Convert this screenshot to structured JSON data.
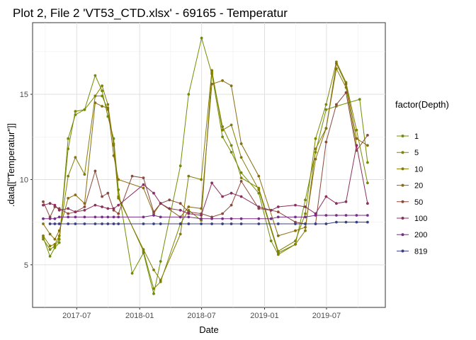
{
  "chart_data": {
    "type": "line",
    "title": "Plot 2, File 2 'VT53_CTD.xlsx' - 69165  -  Temperatur",
    "xlabel": "Date",
    "ylabel": ".data[[\"Temperatur\"]]",
    "x_ticks": [
      "2017-07",
      "2018-01",
      "2018-07",
      "2019-01",
      "2019-07"
    ],
    "y_ticks": [
      "5",
      "10",
      "15"
    ],
    "xlim": [
      "2017-02-22",
      "2019-12-20"
    ],
    "ylim": [
      2.5,
      19.2
    ],
    "grid": true,
    "legend": {
      "title": "factor(Depth)",
      "position": "right"
    },
    "series": [
      {
        "name": "1",
        "color": "#6f8f00",
        "points": [
          [
            "2017-03-25",
            6.6
          ],
          [
            "2017-04-14",
            5.5
          ],
          [
            "2017-04-28",
            6.0
          ],
          [
            "2017-05-11",
            6.3
          ],
          [
            "2017-06-06",
            12.4
          ],
          [
            "2017-06-27",
            13.8
          ],
          [
            "2017-07-24",
            14.1
          ],
          [
            "2017-08-24",
            16.1
          ],
          [
            "2017-09-13",
            15.2
          ],
          [
            "2017-09-30",
            13.7
          ],
          [
            "2017-10-17",
            12.4
          ],
          [
            "2017-10-31",
            9.4
          ],
          [
            "2017-12-10",
            4.5
          ],
          [
            "2018-01-12",
            5.7
          ],
          [
            "2018-02-11",
            3.3
          ],
          [
            "2018-03-03",
            5.2
          ],
          [
            "2018-04-30",
            10.8
          ],
          [
            "2018-05-24",
            15.0
          ],
          [
            "2018-07-01",
            18.3
          ],
          [
            "2018-07-31",
            16.2
          ],
          [
            "2018-08-31",
            12.5
          ],
          [
            "2018-09-26",
            11.6
          ],
          [
            "2018-10-25",
            10.4
          ],
          [
            "2018-12-15",
            9.2
          ],
          [
            "2019-01-20",
            6.4
          ],
          [
            "2019-02-10",
            5.6
          ],
          [
            "2019-04-01",
            6.2
          ],
          [
            "2019-04-30",
            8.8
          ],
          [
            "2019-05-30",
            11.6
          ],
          [
            "2019-06-30",
            14.1
          ],
          [
            "2019-07-30",
            14.3
          ],
          [
            "2019-10-06",
            14.7
          ],
          [
            "2019-10-29",
            11.0
          ]
        ]
      },
      {
        "name": "5",
        "color": "#7b8700",
        "points": [
          [
            "2017-03-25",
            6.5
          ],
          [
            "2017-04-14",
            5.9
          ],
          [
            "2017-04-28",
            6.1
          ],
          [
            "2017-05-11",
            6.5
          ],
          [
            "2017-06-06",
            11.8
          ],
          [
            "2017-06-27",
            14.0
          ],
          [
            "2017-07-24",
            14.1
          ],
          [
            "2017-08-24",
            14.9
          ],
          [
            "2017-09-13",
            14.9
          ],
          [
            "2017-09-30",
            14.1
          ],
          [
            "2017-10-17",
            12.1
          ],
          [
            "2017-10-31",
            9.0
          ],
          [
            "2018-01-12",
            5.8
          ],
          [
            "2018-02-11",
            3.6
          ],
          [
            "2018-03-03",
            4.0
          ],
          [
            "2018-04-30",
            7.4
          ],
          [
            "2018-05-24",
            8.2
          ],
          [
            "2018-06-30",
            7.6
          ],
          [
            "2018-07-31",
            16.3
          ],
          [
            "2018-08-31",
            13.1
          ],
          [
            "2018-09-26",
            12.0
          ],
          [
            "2018-10-25",
            10.1
          ],
          [
            "2018-12-15",
            9.5
          ],
          [
            "2019-02-10",
            5.8
          ],
          [
            "2019-04-01",
            6.4
          ],
          [
            "2019-04-30",
            8.0
          ],
          [
            "2019-05-30",
            12.4
          ],
          [
            "2019-06-30",
            14.4
          ],
          [
            "2019-07-30",
            16.9
          ],
          [
            "2019-08-27",
            15.7
          ],
          [
            "2019-09-27",
            12.9
          ],
          [
            "2019-10-29",
            9.8
          ]
        ]
      },
      {
        "name": "10",
        "color": "#857d00",
        "points": [
          [
            "2017-03-25",
            6.7
          ],
          [
            "2017-04-14",
            6.1
          ],
          [
            "2017-04-28",
            6.2
          ],
          [
            "2017-05-11",
            6.7
          ],
          [
            "2017-06-06",
            10.2
          ],
          [
            "2017-06-27",
            11.3
          ],
          [
            "2017-07-24",
            10.3
          ],
          [
            "2017-08-24",
            14.9
          ],
          [
            "2017-09-13",
            15.5
          ],
          [
            "2017-09-30",
            14.4
          ],
          [
            "2017-10-17",
            12.0
          ],
          [
            "2017-10-31",
            8.9
          ],
          [
            "2018-01-12",
            5.9
          ],
          [
            "2018-02-11",
            4.7
          ],
          [
            "2018-03-03",
            4.1
          ],
          [
            "2018-04-30",
            6.8
          ],
          [
            "2018-05-24",
            10.2
          ],
          [
            "2018-06-30",
            10.0
          ],
          [
            "2018-07-31",
            16.4
          ],
          [
            "2018-08-31",
            12.9
          ],
          [
            "2018-09-26",
            13.2
          ],
          [
            "2018-10-25",
            11.3
          ],
          [
            "2018-12-15",
            9.4
          ],
          [
            "2019-02-10",
            5.7
          ],
          [
            "2019-04-01",
            6.2
          ],
          [
            "2019-04-30",
            7.0
          ],
          [
            "2019-05-30",
            11.8
          ],
          [
            "2019-06-30",
            13.0
          ],
          [
            "2019-07-30",
            16.5
          ],
          [
            "2019-08-27",
            15.4
          ],
          [
            "2019-09-27",
            12.0
          ]
        ]
      },
      {
        "name": "20",
        "color": "#8a6d0d",
        "points": [
          [
            "2017-03-25",
            7.4
          ],
          [
            "2017-04-14",
            6.8
          ],
          [
            "2017-04-28",
            6.5
          ],
          [
            "2017-05-11",
            7.0
          ],
          [
            "2017-06-06",
            8.9
          ],
          [
            "2017-06-27",
            9.1
          ],
          [
            "2017-07-24",
            8.6
          ],
          [
            "2017-08-24",
            14.5
          ],
          [
            "2017-09-13",
            14.3
          ],
          [
            "2017-09-30",
            14.2
          ],
          [
            "2017-10-17",
            11.4
          ],
          [
            "2017-10-31",
            10.0
          ],
          [
            "2018-01-12",
            9.5
          ],
          [
            "2018-02-11",
            8.0
          ],
          [
            "2018-03-03",
            8.6
          ],
          [
            "2018-04-30",
            7.8
          ],
          [
            "2018-05-24",
            8.4
          ],
          [
            "2018-06-30",
            8.3
          ],
          [
            "2018-07-31",
            15.6
          ],
          [
            "2018-08-31",
            15.8
          ],
          [
            "2018-09-26",
            15.5
          ],
          [
            "2018-10-25",
            12.1
          ],
          [
            "2018-12-15",
            10.2
          ],
          [
            "2019-02-10",
            6.7
          ],
          [
            "2019-04-01",
            7.0
          ],
          [
            "2019-04-30",
            7.2
          ],
          [
            "2019-05-30",
            11.2
          ],
          [
            "2019-06-30",
            13.0
          ],
          [
            "2019-07-30",
            16.8
          ],
          [
            "2019-08-27",
            15.6
          ],
          [
            "2019-09-27",
            12.4
          ],
          [
            "2019-10-29",
            12.0
          ]
        ]
      },
      {
        "name": "50",
        "color": "#8b4a39",
        "points": [
          [
            "2017-03-25",
            8.7
          ],
          [
            "2017-04-14",
            7.8
          ],
          [
            "2017-04-28",
            8.4
          ],
          [
            "2017-05-11",
            8.3
          ],
          [
            "2017-06-06",
            8.0
          ],
          [
            "2017-06-27",
            8.1
          ],
          [
            "2017-07-24",
            8.4
          ],
          [
            "2017-08-24",
            10.5
          ],
          [
            "2017-09-13",
            9.0
          ],
          [
            "2017-09-30",
            9.2
          ],
          [
            "2017-10-17",
            8.2
          ],
          [
            "2017-10-31",
            8.0
          ],
          [
            "2017-12-10",
            10.2
          ],
          [
            "2018-01-12",
            10.1
          ],
          [
            "2018-02-11",
            8.1
          ],
          [
            "2018-03-03",
            8.6
          ],
          [
            "2018-03-29",
            8.8
          ],
          [
            "2018-04-30",
            8.6
          ],
          [
            "2018-05-24",
            8.1
          ],
          [
            "2018-06-30",
            8.0
          ],
          [
            "2018-07-31",
            7.8
          ],
          [
            "2018-08-31",
            8.0
          ],
          [
            "2018-09-26",
            8.5
          ],
          [
            "2018-10-25",
            9.9
          ],
          [
            "2018-12-15",
            8.3
          ],
          [
            "2019-01-20",
            8.2
          ],
          [
            "2019-02-10",
            8.1
          ],
          [
            "2019-04-01",
            7.5
          ],
          [
            "2019-04-30",
            7.4
          ],
          [
            "2019-05-30",
            7.4
          ],
          [
            "2019-06-30",
            12.2
          ],
          [
            "2019-07-30",
            14.4
          ],
          [
            "2019-08-27",
            15.1
          ],
          [
            "2019-09-27",
            11.7
          ],
          [
            "2019-10-29",
            12.6
          ]
        ]
      },
      {
        "name": "100",
        "color": "#8b2f5e",
        "points": [
          [
            "2017-03-25",
            8.5
          ],
          [
            "2017-04-14",
            8.6
          ],
          [
            "2017-04-28",
            8.5
          ],
          [
            "2017-05-11",
            8.2
          ],
          [
            "2017-06-06",
            8.3
          ],
          [
            "2017-06-27",
            8.1
          ],
          [
            "2017-07-24",
            8.2
          ],
          [
            "2017-08-24",
            8.5
          ],
          [
            "2017-09-13",
            8.4
          ],
          [
            "2017-09-30",
            8.3
          ],
          [
            "2017-10-17",
            8.3
          ],
          [
            "2017-10-31",
            8.5
          ],
          [
            "2018-01-12",
            9.7
          ],
          [
            "2018-02-11",
            9.2
          ],
          [
            "2018-03-03",
            8.6
          ],
          [
            "2018-03-29",
            8.3
          ],
          [
            "2018-04-30",
            8.2
          ],
          [
            "2018-05-24",
            8.0
          ],
          [
            "2018-06-30",
            7.9
          ],
          [
            "2018-07-31",
            9.8
          ],
          [
            "2018-08-31",
            9.0
          ],
          [
            "2018-09-26",
            9.2
          ],
          [
            "2018-10-25",
            9.0
          ],
          [
            "2018-12-15",
            8.4
          ],
          [
            "2019-01-20",
            8.2
          ],
          [
            "2019-02-10",
            8.4
          ],
          [
            "2019-04-01",
            8.5
          ],
          [
            "2019-04-30",
            8.4
          ],
          [
            "2019-05-30",
            8.0
          ],
          [
            "2019-06-30",
            9.0
          ],
          [
            "2019-07-30",
            8.6
          ],
          [
            "2019-08-27",
            8.7
          ],
          [
            "2019-09-27",
            12.0
          ],
          [
            "2019-10-29",
            8.6
          ]
        ]
      },
      {
        "name": "200",
        "color": "#7a2d8a",
        "points": [
          [
            "2017-03-25",
            7.7
          ],
          [
            "2017-04-14",
            7.7
          ],
          [
            "2017-04-28",
            7.7
          ],
          [
            "2017-05-11",
            7.8
          ],
          [
            "2017-06-06",
            7.8
          ],
          [
            "2017-06-27",
            7.8
          ],
          [
            "2017-07-24",
            7.8
          ],
          [
            "2017-08-24",
            7.8
          ],
          [
            "2017-09-13",
            7.8
          ],
          [
            "2017-09-30",
            7.8
          ],
          [
            "2017-10-17",
            7.8
          ],
          [
            "2017-10-31",
            7.8
          ],
          [
            "2018-01-12",
            7.8
          ],
          [
            "2018-02-11",
            7.9
          ],
          [
            "2018-03-03",
            7.8
          ],
          [
            "2018-04-30",
            7.8
          ],
          [
            "2018-05-24",
            7.8
          ],
          [
            "2018-06-30",
            7.7
          ],
          [
            "2018-07-31",
            7.7
          ],
          [
            "2018-08-31",
            7.7
          ],
          [
            "2018-09-26",
            7.7
          ],
          [
            "2018-10-25",
            7.7
          ],
          [
            "2018-12-15",
            7.7
          ],
          [
            "2019-01-20",
            7.7
          ],
          [
            "2019-02-10",
            7.8
          ],
          [
            "2019-04-01",
            7.8
          ],
          [
            "2019-04-30",
            7.8
          ],
          [
            "2019-05-30",
            7.9
          ],
          [
            "2019-06-30",
            7.9
          ],
          [
            "2019-07-30",
            7.9
          ],
          [
            "2019-08-27",
            7.9
          ],
          [
            "2019-09-27",
            7.9
          ],
          [
            "2019-10-29",
            7.9
          ]
        ]
      },
      {
        "name": "819",
        "color": "#3a3f85",
        "points": [
          [
            "2017-04-14",
            7.4
          ],
          [
            "2017-04-28",
            7.4
          ],
          [
            "2017-05-11",
            7.4
          ],
          [
            "2017-06-06",
            7.4
          ],
          [
            "2017-06-27",
            7.4
          ],
          [
            "2017-07-24",
            7.4
          ],
          [
            "2017-08-24",
            7.4
          ],
          [
            "2017-09-13",
            7.4
          ],
          [
            "2017-09-30",
            7.4
          ],
          [
            "2017-10-17",
            7.4
          ],
          [
            "2017-10-31",
            7.4
          ],
          [
            "2018-01-12",
            7.4
          ],
          [
            "2018-02-11",
            7.4
          ],
          [
            "2018-03-03",
            7.4
          ],
          [
            "2018-04-30",
            7.4
          ],
          [
            "2018-05-24",
            7.4
          ],
          [
            "2018-06-30",
            7.4
          ],
          [
            "2018-07-31",
            7.4
          ],
          [
            "2018-08-31",
            7.4
          ],
          [
            "2018-09-26",
            7.4
          ],
          [
            "2018-10-25",
            7.4
          ],
          [
            "2018-12-15",
            7.4
          ],
          [
            "2019-02-10",
            7.4
          ],
          [
            "2019-04-01",
            7.4
          ],
          [
            "2019-04-30",
            7.4
          ],
          [
            "2019-05-30",
            7.4
          ],
          [
            "2019-06-30",
            7.4
          ],
          [
            "2019-07-30",
            7.5
          ],
          [
            "2019-08-27",
            7.5
          ],
          [
            "2019-09-27",
            7.5
          ],
          [
            "2019-10-29",
            7.5
          ]
        ]
      }
    ]
  }
}
